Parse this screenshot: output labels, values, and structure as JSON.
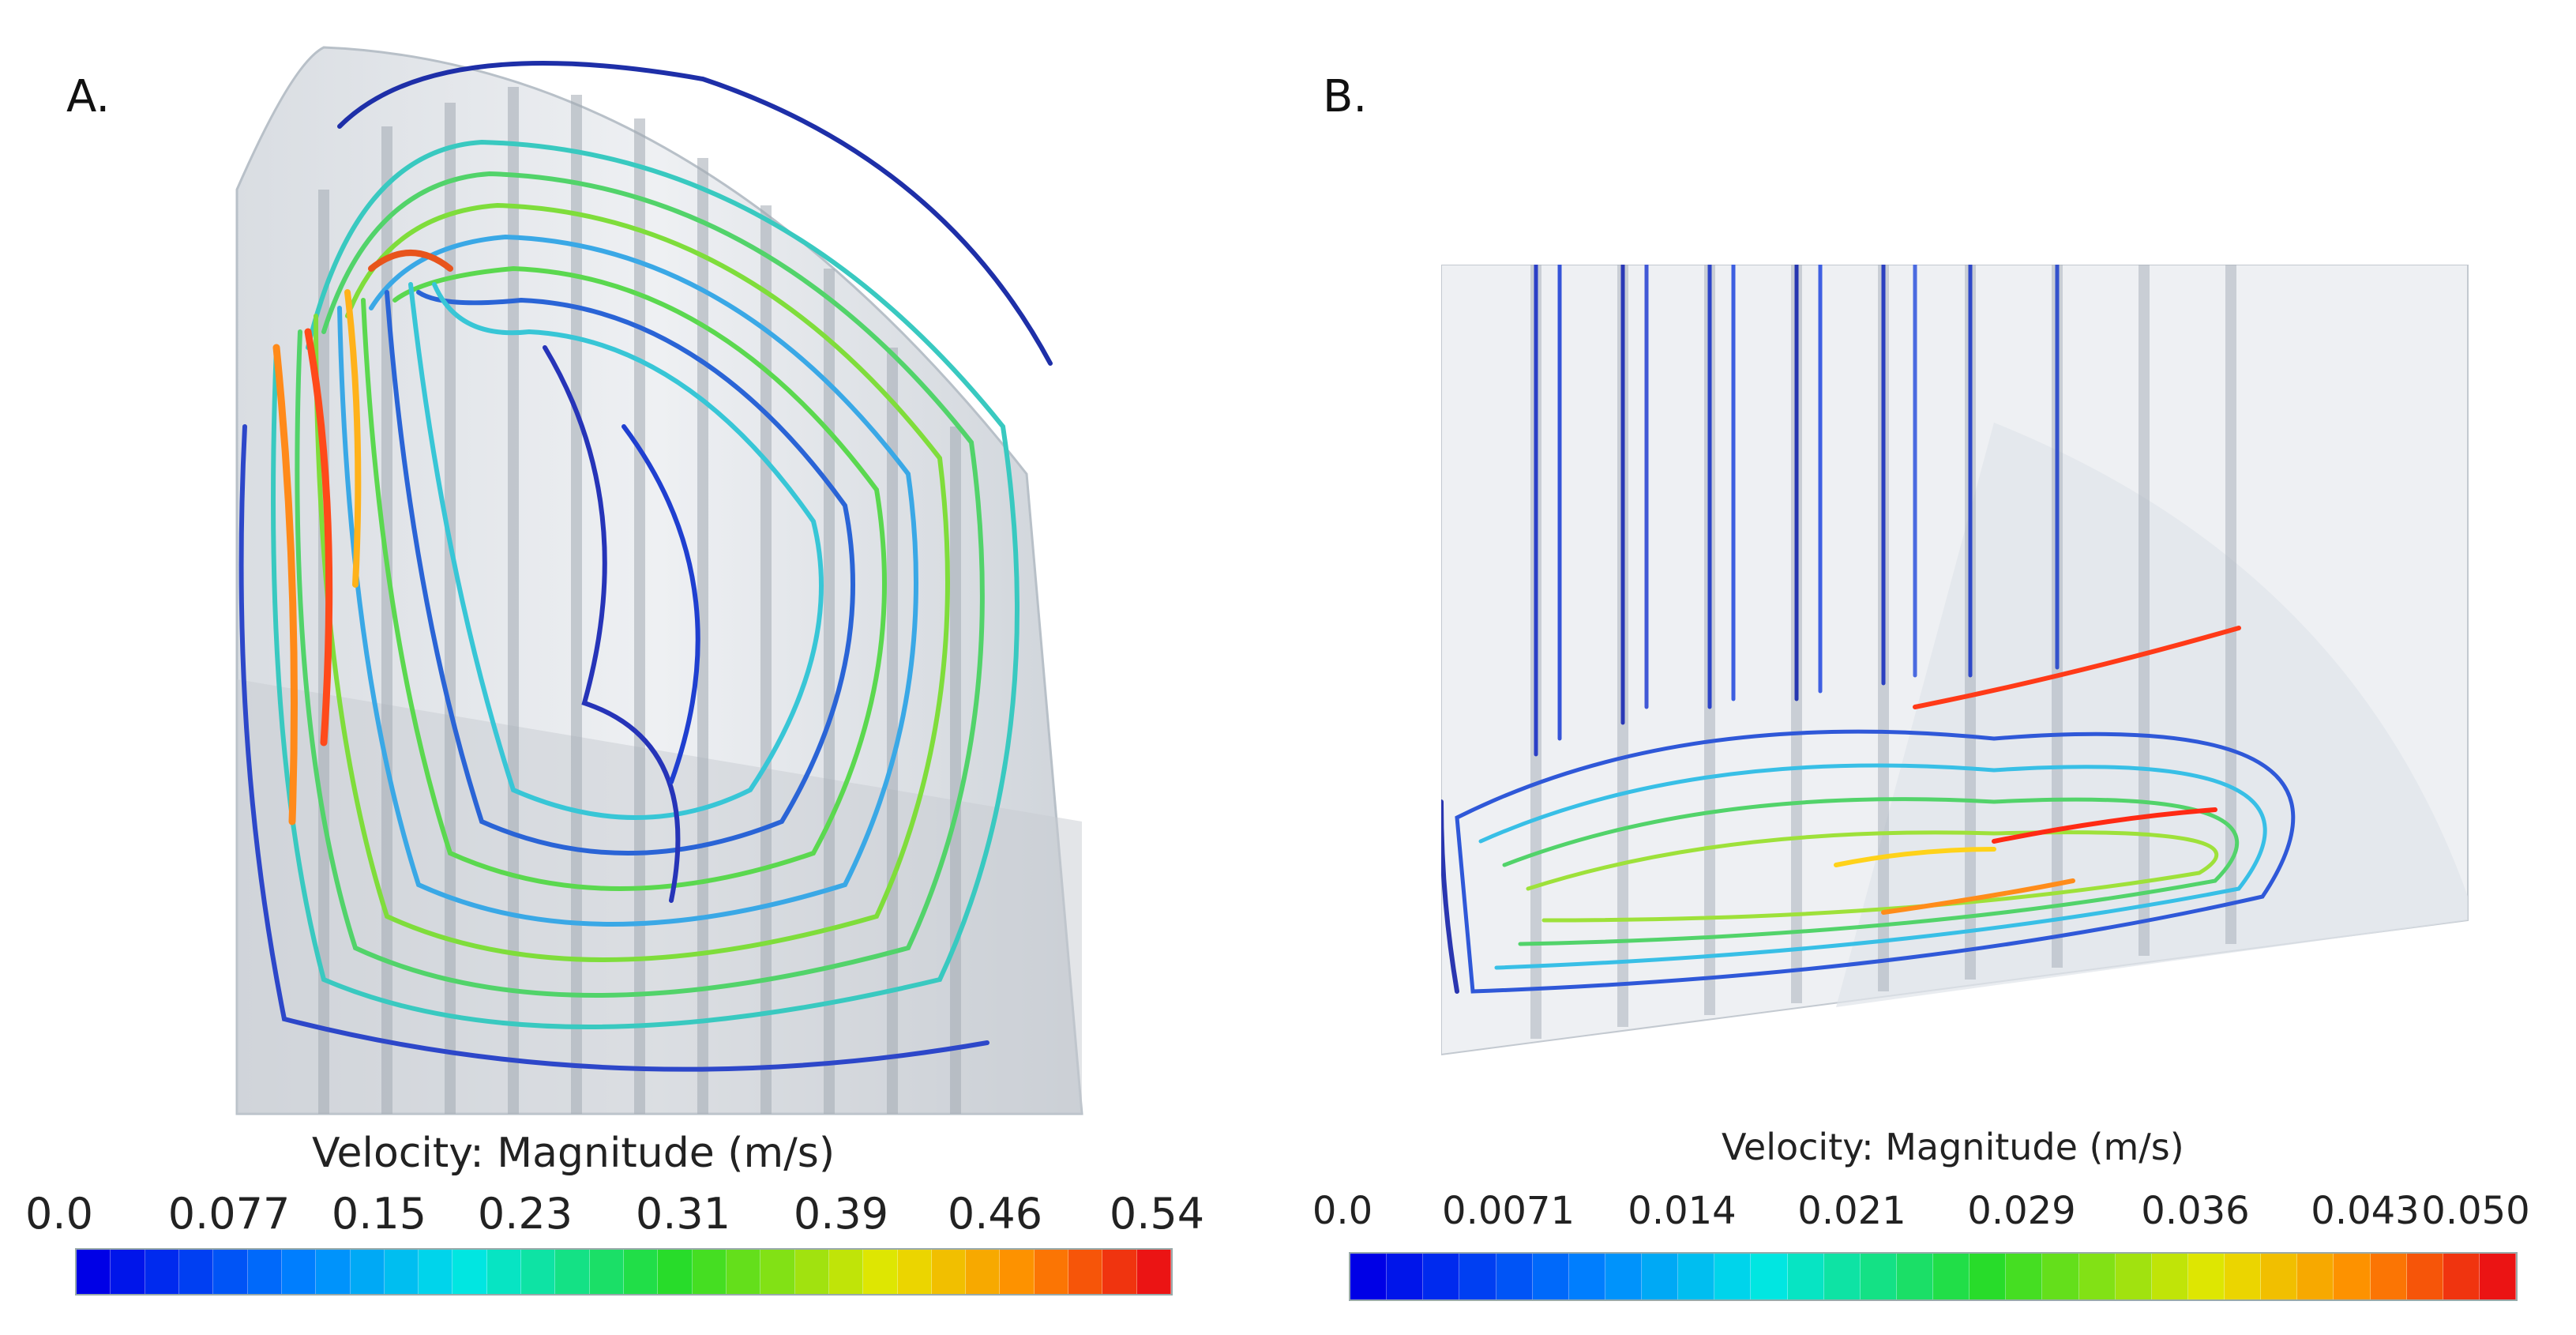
{
  "panels": [
    {
      "label": "A.",
      "legend_title": "Velocity: Magnitude (m/s)",
      "ticks": [
        "0.0",
        "0.077",
        "0.15",
        "0.23",
        "0.31",
        "0.39",
        "0.46",
        "0.54"
      ],
      "colormap": "blue-cyan-green-yellow-red"
    },
    {
      "label": "B.",
      "legend_title": "Velocity: Magnitude (m/s)",
      "ticks": [
        "0.0",
        "0.0071",
        "0.014",
        "0.021",
        "0.029",
        "0.036",
        "0.043",
        "0.050"
      ],
      "colormap": "blue-cyan-green-yellow-red"
    }
  ]
}
